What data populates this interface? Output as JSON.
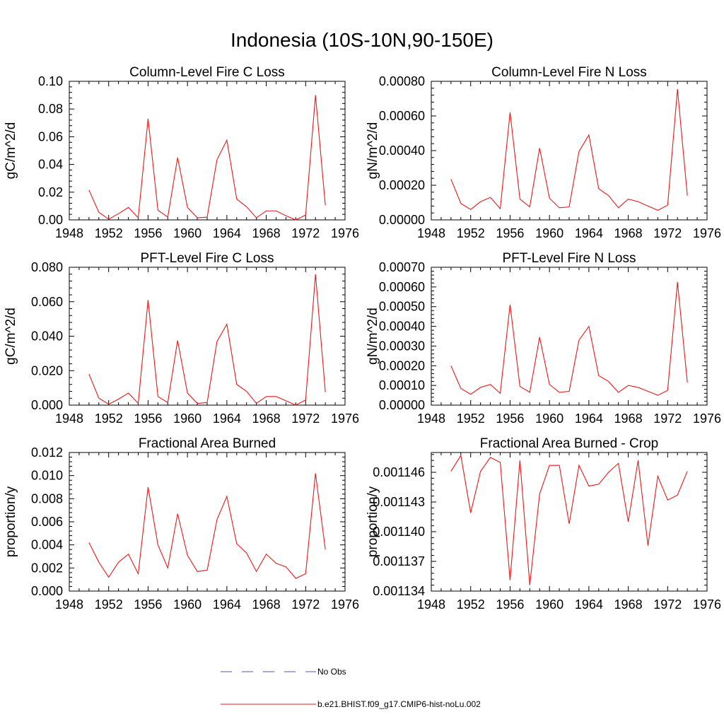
{
  "figure": {
    "title": "Indonesia (10S-10N,90-150E)"
  },
  "legend": [
    {
      "label": "No Obs",
      "color": "#4a5ab0",
      "dash": true
    },
    {
      "label": "b.e21.BHIST.f09_g17.CMIP6-hist-noLu.002",
      "color": "#e8191a",
      "dash": false
    }
  ],
  "chart_data": [
    {
      "type": "line",
      "title": "Column-Level Fire C Loss",
      "ylabel": "gC/m^2/d",
      "xlim": [
        1948,
        1976
      ],
      "xticks": [
        "1948",
        "1952",
        "1956",
        "1960",
        "1964",
        "1968",
        "1972",
        "1976"
      ],
      "ylim": [
        0,
        0.1
      ],
      "yticks": [
        "0.00",
        "0.02",
        "0.04",
        "0.06",
        "0.08",
        "0.10"
      ],
      "grid": false,
      "series": [
        {
          "color": "#e8191a",
          "x": [
            1950,
            1951,
            1952,
            1953,
            1954,
            1955,
            1956,
            1957,
            1958,
            1959,
            1960,
            1961,
            1962,
            1963,
            1964,
            1965,
            1966,
            1967,
            1968,
            1969,
            1970,
            1971,
            1972,
            1973,
            1974
          ],
          "values": [
            0.0215,
            0.0055,
            0.0005,
            0.0045,
            0.009,
            0.0015,
            0.073,
            0.007,
            0.002,
            0.045,
            0.009,
            0.0015,
            0.002,
            0.0435,
            0.0575,
            0.015,
            0.0095,
            0.0015,
            0.0065,
            0.0065,
            0.003,
            0.0,
            0.0035,
            0.09,
            0.0105
          ]
        }
      ]
    },
    {
      "type": "line",
      "title": "Column-Level Fire N Loss",
      "ylabel": "gN/m^2/d",
      "xlim": [
        1948,
        1976
      ],
      "xticks": [
        "1948",
        "1952",
        "1956",
        "1960",
        "1964",
        "1968",
        "1972",
        "1976"
      ],
      "ylim": [
        0,
        0.0008
      ],
      "yticks": [
        "0.00000",
        "0.00020",
        "0.00040",
        "0.00060",
        "0.00080"
      ],
      "grid": false,
      "series": [
        {
          "color": "#e8191a",
          "x": [
            1950,
            1951,
            1952,
            1953,
            1954,
            1955,
            1956,
            1957,
            1958,
            1959,
            1960,
            1961,
            1962,
            1963,
            1964,
            1965,
            1966,
            1967,
            1968,
            1969,
            1970,
            1971,
            1972,
            1973,
            1974
          ],
          "values": [
            0.000235,
            9.5e-05,
            6e-05,
            0.000105,
            0.00013,
            6.5e-05,
            0.00062,
            0.00012,
            7.5e-05,
            0.000415,
            0.000125,
            7e-05,
            7.5e-05,
            0.000395,
            0.00049,
            0.00018,
            0.00014,
            7e-05,
            0.00012,
            0.000105,
            8e-05,
            5.5e-05,
            8.5e-05,
            0.000755,
            0.00014
          ]
        }
      ]
    },
    {
      "type": "line",
      "title": "PFT-Level Fire C Loss",
      "ylabel": "gC/m^2/d",
      "xlim": [
        1948,
        1976
      ],
      "xticks": [
        "1948",
        "1952",
        "1956",
        "1960",
        "1964",
        "1968",
        "1972",
        "1976"
      ],
      "ylim": [
        0,
        0.08
      ],
      "yticks": [
        "0.000",
        "0.020",
        "0.040",
        "0.060",
        "0.080"
      ],
      "grid": false,
      "series": [
        {
          "color": "#e8191a",
          "x": [
            1950,
            1951,
            1952,
            1953,
            1954,
            1955,
            1956,
            1957,
            1958,
            1959,
            1960,
            1961,
            1962,
            1963,
            1964,
            1965,
            1966,
            1967,
            1968,
            1969,
            1970,
            1971,
            1972,
            1973,
            1974
          ],
          "values": [
            0.018,
            0.004,
            0.0005,
            0.0035,
            0.007,
            0.001,
            0.061,
            0.005,
            0.0015,
            0.0375,
            0.007,
            0.001,
            0.0015,
            0.037,
            0.047,
            0.012,
            0.008,
            0.001,
            0.005,
            0.005,
            0.0025,
            0.0,
            0.003,
            0.076,
            0.0075
          ]
        }
      ]
    },
    {
      "type": "line",
      "title": "PFT-Level Fire N Loss",
      "ylabel": "gN/m^2/d",
      "xlim": [
        1948,
        1976
      ],
      "xticks": [
        "1948",
        "1952",
        "1956",
        "1960",
        "1964",
        "1968",
        "1972",
        "1976"
      ],
      "ylim": [
        0,
        0.0007
      ],
      "yticks": [
        "0.00000",
        "0.00010",
        "0.00020",
        "0.00030",
        "0.00040",
        "0.00050",
        "0.00060",
        "0.00070"
      ],
      "grid": false,
      "series": [
        {
          "color": "#e8191a",
          "x": [
            1950,
            1951,
            1952,
            1953,
            1954,
            1955,
            1956,
            1957,
            1958,
            1959,
            1960,
            1961,
            1962,
            1963,
            1964,
            1965,
            1966,
            1967,
            1968,
            1969,
            1970,
            1971,
            1972,
            1973,
            1974
          ],
          "values": [
            0.0002,
            8.5e-05,
            5.5e-05,
            9e-05,
            0.000105,
            6e-05,
            0.00051,
            9.5e-05,
            6.5e-05,
            0.000345,
            0.000105,
            6.5e-05,
            7e-05,
            0.00033,
            0.0004,
            0.00015,
            0.00012,
            6.5e-05,
            0.0001,
            9e-05,
            7e-05,
            5e-05,
            7.5e-05,
            0.000625,
            0.000115
          ]
        }
      ]
    },
    {
      "type": "line",
      "title": "Fractional Area Burned",
      "ylabel": "proportion/y",
      "xlim": [
        1948,
        1976
      ],
      "xticks": [
        "1948",
        "1952",
        "1956",
        "1960",
        "1964",
        "1968",
        "1972",
        "1976"
      ],
      "ylim": [
        0,
        0.012
      ],
      "yticks": [
        "0.000",
        "0.002",
        "0.004",
        "0.006",
        "0.008",
        "0.010",
        "0.012"
      ],
      "grid": false,
      "series": [
        {
          "color": "#e8191a",
          "x": [
            1950,
            1951,
            1952,
            1953,
            1954,
            1955,
            1956,
            1957,
            1958,
            1959,
            1960,
            1961,
            1962,
            1963,
            1964,
            1965,
            1966,
            1967,
            1968,
            1969,
            1970,
            1971,
            1972,
            1973,
            1974
          ],
          "values": [
            0.0042,
            0.0025,
            0.0012,
            0.0025,
            0.0032,
            0.0015,
            0.009,
            0.004,
            0.002,
            0.0067,
            0.0031,
            0.0017,
            0.0018,
            0.0062,
            0.0082,
            0.0041,
            0.0033,
            0.0017,
            0.0032,
            0.0024,
            0.0021,
            0.0011,
            0.0015,
            0.0102,
            0.0036
          ]
        }
      ]
    },
    {
      "type": "line",
      "title": "Fractional Area Burned - Crop",
      "ylabel": "proportion/y",
      "xlim": [
        1948,
        1976
      ],
      "xticks": [
        "1948",
        "1952",
        "1956",
        "1960",
        "1964",
        "1968",
        "1972",
        "1976"
      ],
      "ylim": [
        0.001134,
        0.001148
      ],
      "yticks": [
        "0.001134",
        "0.001137",
        "0.001140",
        "0.001143",
        "0.001146"
      ],
      "ytickvals": [
        0.001134,
        0.001137,
        0.00114,
        0.001143,
        0.001146
      ],
      "grid": false,
      "series": [
        {
          "color": "#e8191a",
          "x": [
            1950,
            1951,
            1952,
            1953,
            1954,
            1955,
            1956,
            1957,
            1958,
            1959,
            1960,
            1961,
            1962,
            1963,
            1964,
            1965,
            1966,
            1967,
            1968,
            1969,
            1970,
            1971,
            1972,
            1973,
            1974
          ],
          "values": [
            0.0011461,
            0.0011477,
            0.0011419,
            0.0011461,
            0.0011475,
            0.001147,
            0.0011351,
            0.0011472,
            0.0011346,
            0.0011438,
            0.0011467,
            0.0011467,
            0.0011408,
            0.0011467,
            0.0011446,
            0.0011448,
            0.001146,
            0.0011469,
            0.001141,
            0.0011472,
            0.0011386,
            0.0011456,
            0.0011432,
            0.0011437,
            0.0011461
          ]
        }
      ]
    }
  ]
}
